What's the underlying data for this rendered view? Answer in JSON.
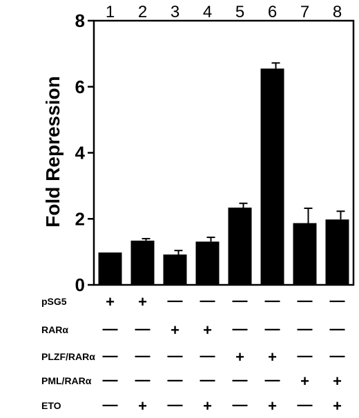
{
  "chart_data": {
    "type": "bar",
    "categories": [
      "1",
      "2",
      "3",
      "4",
      "5",
      "6",
      "7",
      "8"
    ],
    "values": [
      0.98,
      1.34,
      0.92,
      1.31,
      2.34,
      6.55,
      1.87,
      1.98
    ],
    "errors": [
      0.0,
      0.06,
      0.12,
      0.13,
      0.13,
      0.17,
      0.45,
      0.25
    ],
    "title": "",
    "xlabel": "",
    "ylabel": "Fold Repression",
    "ylim": [
      0,
      8
    ],
    "yticks": [
      "0",
      "2",
      "4",
      "6",
      "8"
    ],
    "grid": false,
    "legend": "none",
    "bar_color": "#000000",
    "conditions": [
      {
        "label": "pSG5",
        "signs": [
          "+",
          "+",
          "—",
          "—",
          "—",
          "—",
          "—",
          "—"
        ]
      },
      {
        "label": "RARα",
        "signs": [
          "—",
          "—",
          "+",
          "+",
          "—",
          "—",
          "—",
          "—"
        ]
      },
      {
        "label": "PLZF/RARα",
        "signs": [
          "—",
          "—",
          "—",
          "—",
          "+",
          "+",
          "—",
          "—"
        ]
      },
      {
        "label": "PML/RARα",
        "signs": [
          "—",
          "—",
          "—",
          "—",
          "—",
          "—",
          "+",
          "+"
        ]
      },
      {
        "label": "ETO",
        "signs": [
          "—",
          "+",
          "—",
          "+",
          "—",
          "+",
          "—",
          "+"
        ]
      }
    ]
  }
}
